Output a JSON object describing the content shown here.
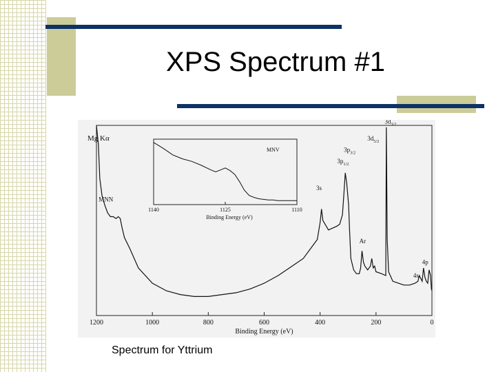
{
  "slide": {
    "title": "XPS Spectrum #1",
    "caption": "Spectrum for Yttrium"
  },
  "colors": {
    "accent_bar": "#0d3266",
    "accent_block": "#cccc99",
    "grid": "#d6d6a8"
  },
  "chart_data": [
    {
      "type": "line",
      "title": "",
      "xlabel": "Binding Energy (eV)",
      "ylabel": "",
      "xlim": [
        1200,
        0
      ],
      "xticks": [
        1200,
        1000,
        800,
        600,
        400,
        200,
        0
      ],
      "ylim": [
        0,
        100
      ],
      "grid": false,
      "legend": "none",
      "source_label": "Mg Kα",
      "series": [
        {
          "x": [
            1200,
            1193,
            1188,
            1180,
            1170,
            1160,
            1150,
            1140,
            1130,
            1122,
            1115,
            1108,
            1100,
            1080,
            1050,
            1000,
            950,
            900,
            850,
            800,
            750,
            700,
            650,
            600,
            550,
            500,
            460,
            430,
            410,
            400,
            395,
            390,
            370,
            340,
            330,
            320,
            315,
            310,
            305,
            302,
            298,
            295,
            290,
            280,
            270,
            260,
            255,
            250,
            245,
            240,
            230,
            220,
            215,
            210,
            205,
            200,
            180,
            165,
            163,
            160,
            155,
            140,
            120,
            100,
            80,
            60,
            50,
            45,
            35,
            30,
            25,
            20,
            15,
            10,
            5,
            2,
            0
          ],
          "y": [
            100,
            90,
            72,
            63,
            58,
            54,
            52,
            52,
            51,
            52,
            51,
            46,
            41,
            35,
            25,
            17,
            13,
            11,
            10,
            10,
            11,
            12,
            14,
            17,
            21,
            26,
            30,
            36,
            40,
            49,
            56,
            50,
            45,
            47,
            48,
            53,
            64,
            75,
            70,
            65,
            58,
            46,
            30,
            24,
            22,
            22,
            25,
            34,
            28,
            26,
            24,
            26,
            30,
            25,
            26,
            23,
            22,
            21,
            99,
            40,
            23,
            18,
            17,
            16,
            16,
            17,
            18,
            21,
            18,
            25,
            20,
            18,
            17,
            24,
            21,
            14,
            13
          ]
        }
      ],
      "annotations": [
        {
          "text": "MNN",
          "x": 1166,
          "y": 60
        },
        {
          "text": "3d",
          "sub": "3/2",
          "x": 148,
          "y": 101
        },
        {
          "text": "3d",
          "sub": "5/2",
          "x": 210,
          "y": 92
        },
        {
          "text": "3p",
          "sub": "3/2",
          "x": 294,
          "y": 86
        },
        {
          "text": "3p",
          "sub": "1/2",
          "x": 318,
          "y": 80
        },
        {
          "text": "3s",
          "x": 404,
          "y": 66
        },
        {
          "text": "Ar",
          "x": 248,
          "y": 38
        },
        {
          "text": "4s",
          "x": 57,
          "y": 20
        },
        {
          "text": "4p",
          "x": 24,
          "y": 27
        }
      ]
    },
    {
      "type": "line",
      "title": "",
      "xlabel": "Binding Energy (eV)",
      "ylabel": "",
      "xlim": [
        1140,
        1110
      ],
      "xticks": [
        1140,
        1125,
        1110
      ],
      "ylim": [
        0,
        100
      ],
      "grid": false,
      "legend": "none",
      "series_label": "MNV",
      "series": [
        {
          "x": [
            1140,
            1138,
            1136,
            1134,
            1132,
            1130,
            1128,
            1127,
            1126,
            1125,
            1124,
            1123,
            1122,
            1121,
            1120,
            1119,
            1118,
            1117,
            1116,
            1115,
            1114,
            1113,
            1112,
            1111,
            1110
          ],
          "y": [
            95,
            86,
            76,
            70,
            66,
            60,
            53,
            50,
            53,
            56,
            52,
            46,
            35,
            22,
            14,
            11,
            9,
            8,
            7,
            7,
            6,
            6,
            6,
            6,
            6
          ]
        }
      ]
    }
  ]
}
